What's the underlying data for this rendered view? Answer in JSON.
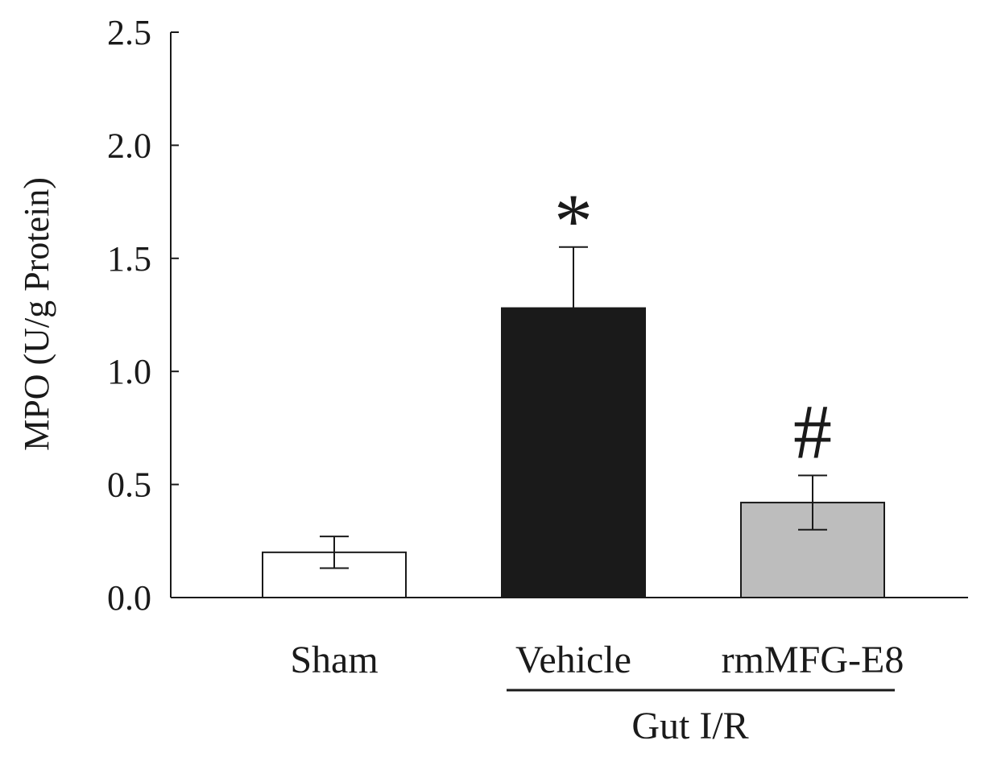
{
  "chart_data": {
    "type": "bar",
    "categories": [
      "Sham",
      "Vehicle",
      "rmMFG-E8"
    ],
    "values": [
      0.2,
      1.28,
      0.42
    ],
    "errors": [
      0.07,
      0.27,
      0.12
    ],
    "colors": [
      "#ffffff",
      "#1a1a1a",
      "#bdbdbd"
    ],
    "annotations": [
      "",
      "*",
      "#"
    ],
    "group_label": "Gut I/R",
    "ylabel": "MPO (U/g Protein)",
    "ylim": [
      0,
      2.5
    ],
    "yticks": [
      "0.0",
      "0.5",
      "1.0",
      "1.5",
      "2.0",
      "2.5"
    ],
    "grid": false,
    "legend": "none"
  }
}
